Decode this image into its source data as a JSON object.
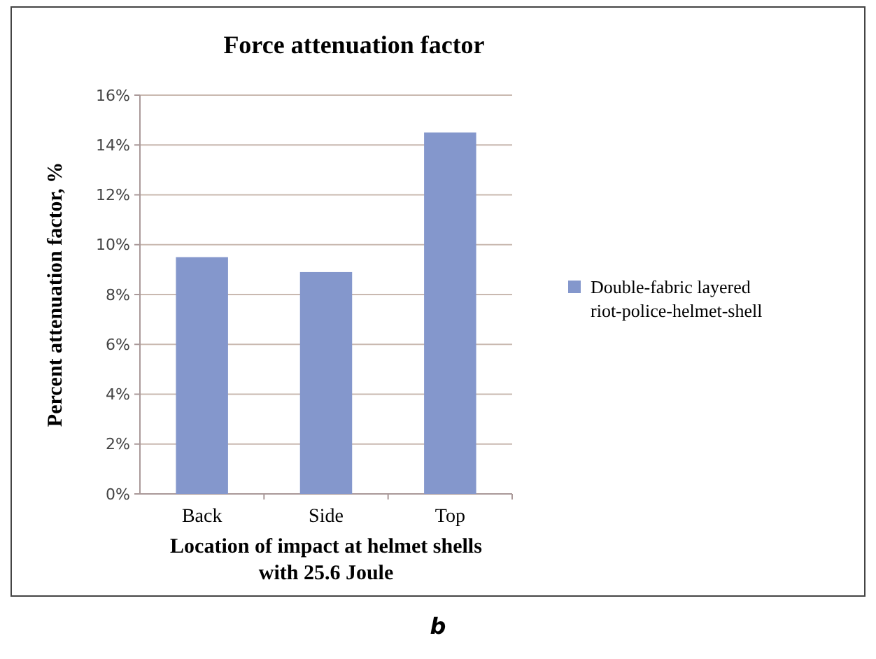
{
  "chart_data": {
    "type": "bar",
    "title": "Force attenuation factor",
    "xlabel": "Location of impact at helmet shells with 25.6 Joule",
    "ylabel": "Percent attenuation factor, %",
    "categories": [
      "Back",
      "Side",
      "Top"
    ],
    "series": [
      {
        "name": "Double-fabric layered riot-police-helmet-shell",
        "color": "#8497cc",
        "values": [
          9.5,
          8.9,
          14.5
        ]
      }
    ],
    "ylim": [
      0,
      16
    ],
    "yticks": [
      {
        "value": 0,
        "label": "0%"
      },
      {
        "value": 2,
        "label": "2%"
      },
      {
        "value": 4,
        "label": "4%"
      },
      {
        "value": 6,
        "label": "6%"
      },
      {
        "value": 8,
        "label": "8%"
      },
      {
        "value": 10,
        "label": "10%"
      },
      {
        "value": 12,
        "label": "12%"
      },
      {
        "value": 14,
        "label": "14%"
      },
      {
        "value": 16,
        "label": "16%"
      }
    ],
    "grid": "y",
    "legend": "right",
    "annotations": [
      "b"
    ]
  }
}
